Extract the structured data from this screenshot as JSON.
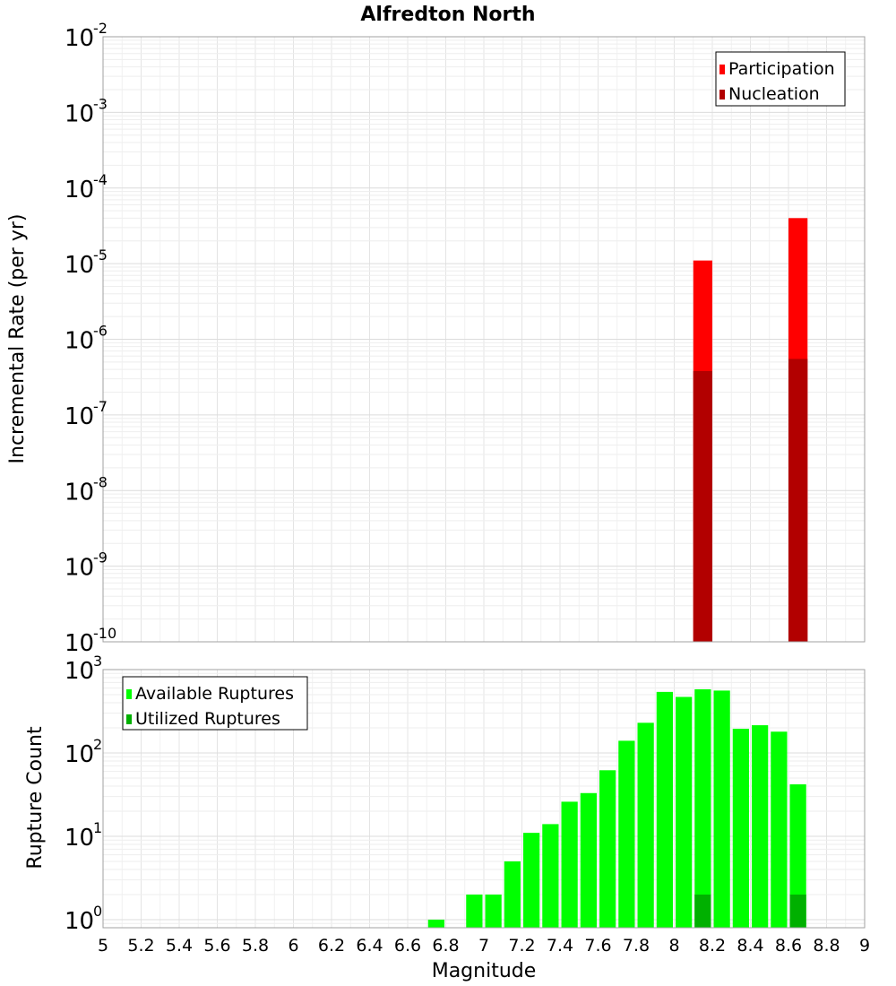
{
  "chart_data": [
    {
      "type": "bar",
      "title": "Alfredton North",
      "ylabel": "Incremental Rate (per yr)",
      "xlabel": "",
      "yscale": "log",
      "ylim": [
        1e-10,
        0.01
      ],
      "xlim": [
        5,
        9
      ],
      "ytick_exponents": [
        "-10",
        "-9",
        "-8",
        "-7",
        "-6",
        "-5",
        "-4",
        "-3",
        "-2"
      ],
      "ytick_base": "10",
      "grid": true,
      "legend_position": "top-right",
      "bin_width": 0.1,
      "series": [
        {
          "name": "Participation",
          "color": "#ff0000",
          "x": [
            8.15,
            8.65
          ],
          "values": [
            1.1e-05,
            4e-05
          ]
        },
        {
          "name": "Nucleation",
          "color": "#b20000",
          "x": [
            8.15,
            8.65
          ],
          "values": [
            3.8e-07,
            5.5e-07
          ]
        }
      ]
    },
    {
      "type": "bar",
      "title": "",
      "ylabel": "Rupture Count",
      "xlabel": "Magnitude",
      "yscale": "log",
      "ylim": [
        0.8,
        1000
      ],
      "xlim": [
        5,
        9
      ],
      "ytick_exponents": [
        "0",
        "1",
        "2",
        "3"
      ],
      "ytick_base": "10",
      "xticks": [
        "5",
        "5.2",
        "5.4",
        "5.6",
        "5.8",
        "6",
        "6.2",
        "6.4",
        "6.6",
        "6.8",
        "7",
        "7.2",
        "7.4",
        "7.6",
        "7.8",
        "8",
        "8.2",
        "8.4",
        "8.6",
        "8.8",
        "9"
      ],
      "grid": true,
      "legend_position": "top-left",
      "bin_width": 0.1,
      "series": [
        {
          "name": "Available Ruptures",
          "color": "#00ff00",
          "x": [
            6.75,
            6.95,
            7.05,
            7.15,
            7.25,
            7.35,
            7.45,
            7.55,
            7.65,
            7.75,
            7.85,
            7.95,
            8.05,
            8.15,
            8.25,
            8.35,
            8.45,
            8.55,
            8.65
          ],
          "values": [
            1,
            2,
            2,
            5,
            11,
            14,
            26,
            33,
            62,
            140,
            230,
            540,
            470,
            580,
            560,
            195,
            215,
            180,
            42
          ]
        },
        {
          "name": "Utilized Ruptures",
          "color": "#00b000",
          "x": [
            8.15,
            8.65
          ],
          "values": [
            2,
            2
          ]
        }
      ]
    }
  ]
}
